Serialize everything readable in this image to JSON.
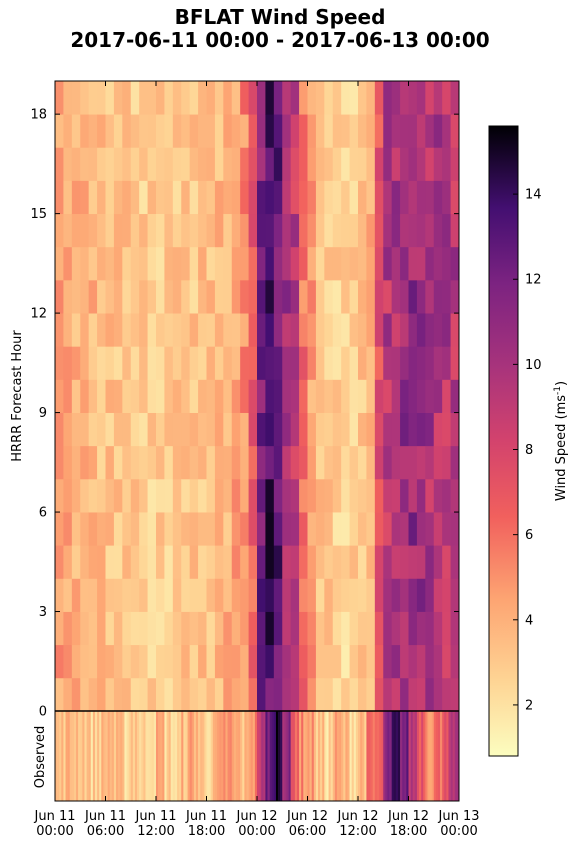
{
  "chart_data": {
    "type": "heatmap",
    "title": "BFLAT Wind Speed",
    "subtitle": "2017-06-11 00:00 - 2017-06-13 00:00",
    "ylabel": "HRRR Forecast Hour",
    "observed_label": "Observed",
    "colorbar_label": "Wind Speed (ms",
    "colorbar_label_sup": "-1",
    "colorbar_label_end": ")",
    "colormap": "magma_r",
    "colorbar_range": [
      0.8,
      15.6
    ],
    "colorbar_ticks": [
      "2",
      "4",
      "6",
      "8",
      "10",
      "12",
      "14"
    ],
    "x_range_hours": [
      0,
      48
    ],
    "x_ticks": [
      {
        "line1": "Jun 11",
        "line2": "00:00"
      },
      {
        "line1": "Jun 11",
        "line2": "06:00"
      },
      {
        "line1": "Jun 11",
        "line2": "12:00"
      },
      {
        "line1": "Jun 11",
        "line2": "18:00"
      },
      {
        "line1": "Jun 12",
        "line2": "00:00"
      },
      {
        "line1": "Jun 12",
        "line2": "06:00"
      },
      {
        "line1": "Jun 12",
        "line2": "12:00"
      },
      {
        "line1": "Jun 12",
        "line2": "18:00"
      },
      {
        "line1": "Jun 13",
        "line2": "00:00"
      }
    ],
    "y_ticks": [
      "0",
      "3",
      "6",
      "9",
      "12",
      "15",
      "18"
    ],
    "y_range": [
      0,
      19
    ],
    "forecast_hours": 19,
    "hourly_columns": 48,
    "hourly_mean_wind_speed": [
      4.6,
      4.2,
      3.9,
      3.8,
      3.7,
      3.5,
      3.3,
      3.2,
      3.1,
      3.0,
      2.9,
      2.8,
      2.8,
      2.9,
      3.0,
      3.1,
      3.2,
      3.3,
      3.4,
      3.6,
      3.9,
      4.3,
      5.2,
      6.8,
      11.8,
      13.5,
      12.5,
      10.5,
      9.0,
      6.0,
      4.5,
      3.4,
      3.0,
      2.7,
      2.5,
      2.7,
      3.2,
      4.0,
      7.0,
      9.5,
      10.2,
      10.5,
      10.8,
      10.4,
      10.0,
      9.8,
      9.6,
      9.5
    ],
    "hourly_variation": 1.3,
    "observed_mean_wind_speed": [
      3.2,
      3.6,
      3.8,
      3.5,
      2.8,
      3.3,
      4.0,
      3.0,
      2.6,
      3.5,
      2.4,
      3.0,
      3.8,
      2.7,
      2.2,
      3.6,
      4.3,
      3.1,
      2.9,
      3.8,
      4.8,
      4.0,
      3.3,
      5.2,
      9.0,
      12.5,
      15.0,
      11.0,
      7.0,
      5.0,
      4.5,
      3.0,
      2.5,
      4.0,
      3.4,
      2.8,
      3.8,
      5.5,
      6.0,
      11.0,
      13.5,
      12.0,
      9.5,
      7.5,
      5.5,
      6.0,
      8.0,
      9.0
    ]
  }
}
